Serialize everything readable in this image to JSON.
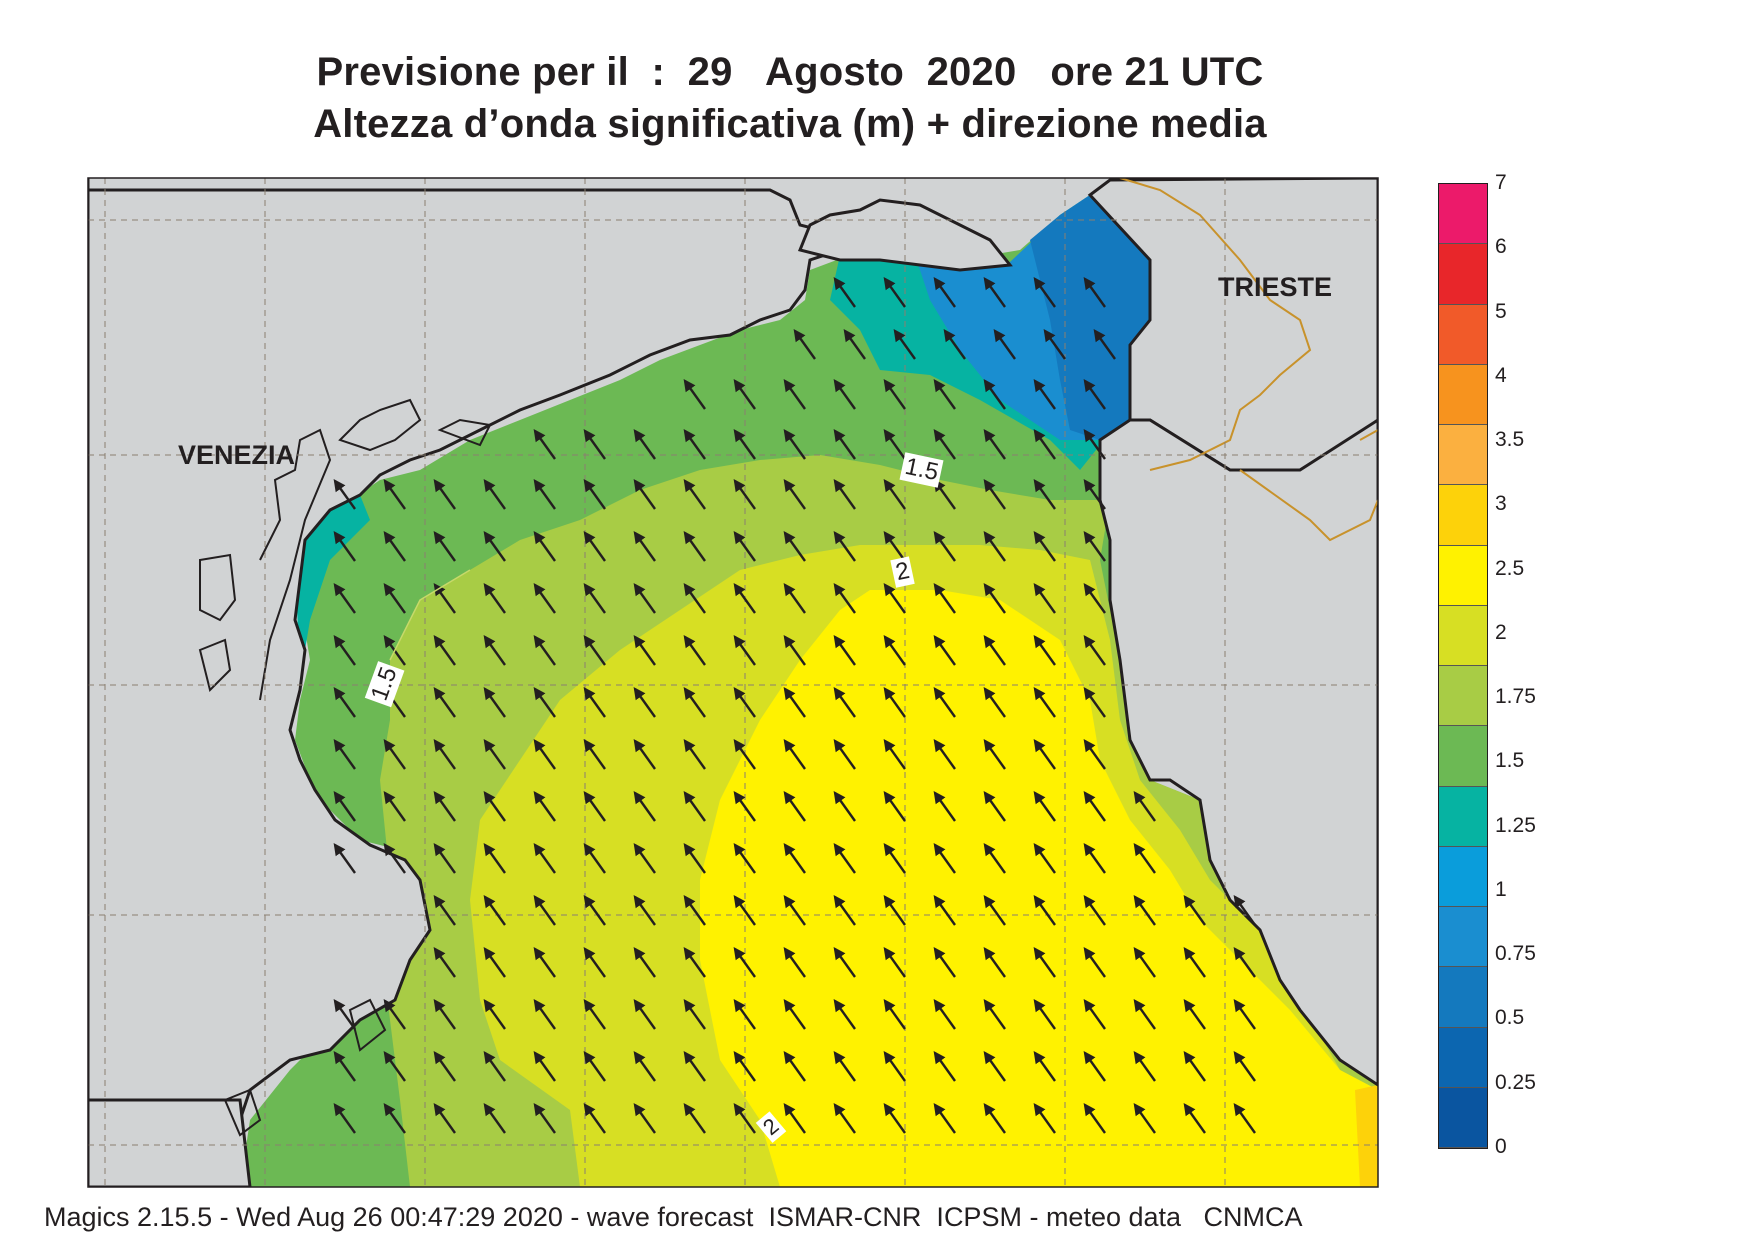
{
  "title_line1": "Previsione per il  :  29   Agosto  2020   ore 21 UTC",
  "title_line2": "Altezza d’onda significativa (m) + direzione media",
  "places": [
    {
      "name": "VENEZIA"
    },
    {
      "name": "TRIESTE"
    }
  ],
  "contour_labels": [
    "1.5",
    "1.5",
    "2",
    "2"
  ],
  "legend": {
    "ticks": [
      "7",
      "6",
      "5",
      "4",
      "3.5",
      "3",
      "2.5",
      "2",
      "1.75",
      "1.5",
      "1.25",
      "1",
      "0.75",
      "0.5",
      "0.25",
      "0"
    ],
    "colors": [
      "#ec1a6a",
      "#e8262a",
      "#f15a29",
      "#f7931e",
      "#fbb040",
      "#fdd20a",
      "#fff200",
      "#d7df23",
      "#a8cc45",
      "#6cb954",
      "#06b3a2",
      "#0a9ddb",
      "#1a8ed0",
      "#1479be",
      "#0c66b0",
      "#0a55a0"
    ]
  },
  "wave_direction": "NW (arrows pointing toward north-west)",
  "footer": "Magics 2.15.5 - Wed Aug 26 00:47:29 2020 - wave forecast  ISMAR-CNR  ICPSM - meteo data   CNMCA"
}
